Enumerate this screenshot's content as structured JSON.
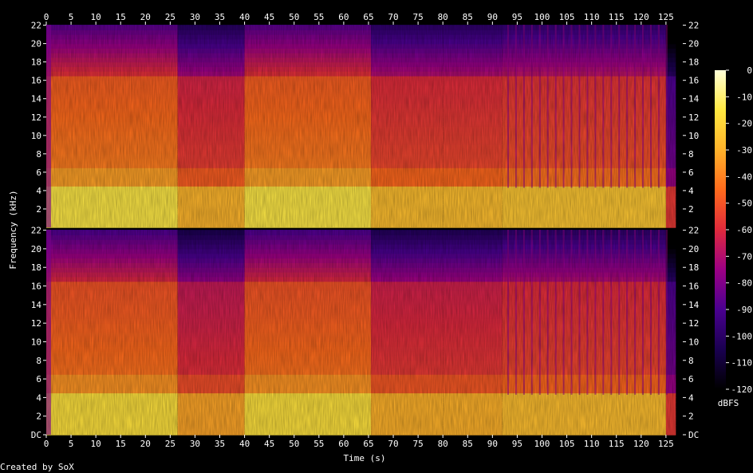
{
  "chart_data": {
    "type": "heatmap",
    "title": "",
    "xlabel": "Time (s)",
    "ylabel": "Frequency (kHz)",
    "credit": "Created by SoX",
    "colorbar_label": "dBFS",
    "duration_s": 127,
    "xlim": [
      0,
      128.4
    ],
    "x_ticks": [
      0,
      5,
      10,
      15,
      20,
      25,
      30,
      35,
      40,
      45,
      50,
      55,
      60,
      65,
      70,
      75,
      80,
      85,
      90,
      95,
      100,
      105,
      110,
      115,
      120,
      125
    ],
    "ylim_khz": [
      0,
      22.05
    ],
    "y_tick_labels_top": [
      "2",
      "4",
      "6",
      "8",
      "10",
      "12",
      "14",
      "16",
      "18",
      "20",
      "22"
    ],
    "y_tick_labels_bottom": [
      "DC",
      "2",
      "4",
      "6",
      "8",
      "10",
      "12",
      "14",
      "16",
      "18",
      "20",
      "22"
    ],
    "colorbar_ticks": [
      "0",
      "-10",
      "-20",
      "-30",
      "-40",
      "-50",
      "-60",
      "-70",
      "-80",
      "-90",
      "-100",
      "-110",
      "-120"
    ],
    "colorbar_range_dbfs": [
      -120,
      0
    ],
    "colormap": [
      "#000000",
      "#1a0050",
      "#4a0090",
      "#9d0085",
      "#e02a3c",
      "#ff6a1c",
      "#ffb22a",
      "#ffe840",
      "#ffffd8"
    ],
    "channels": [
      {
        "segments": [
          {
            "t0": 0,
            "t1": 26.5,
            "level": 0.6
          },
          {
            "t0": 26.5,
            "t1": 40,
            "level": 0.48
          },
          {
            "t0": 40,
            "t1": 65.5,
            "level": 0.6
          },
          {
            "t0": 65.5,
            "t1": 80,
            "level": 0.5
          },
          {
            "t0": 80,
            "t1": 92,
            "level": 0.5
          },
          {
            "t0": 92,
            "t1": 125,
            "level": 0.52
          },
          {
            "t0": 125,
            "t1": 127,
            "level": 0.25
          }
        ]
      },
      {
        "segments": [
          {
            "t0": 0,
            "t1": 26.5,
            "level": 0.58
          },
          {
            "t0": 26.5,
            "t1": 40,
            "level": 0.45
          },
          {
            "t0": 40,
            "t1": 65.5,
            "level": 0.58
          },
          {
            "t0": 65.5,
            "t1": 80,
            "level": 0.47
          },
          {
            "t0": 80,
            "t1": 92,
            "level": 0.47
          },
          {
            "t0": 92,
            "t1": 125,
            "level": 0.5
          },
          {
            "t0": 125,
            "t1": 127,
            "level": 0.25
          }
        ]
      }
    ]
  }
}
